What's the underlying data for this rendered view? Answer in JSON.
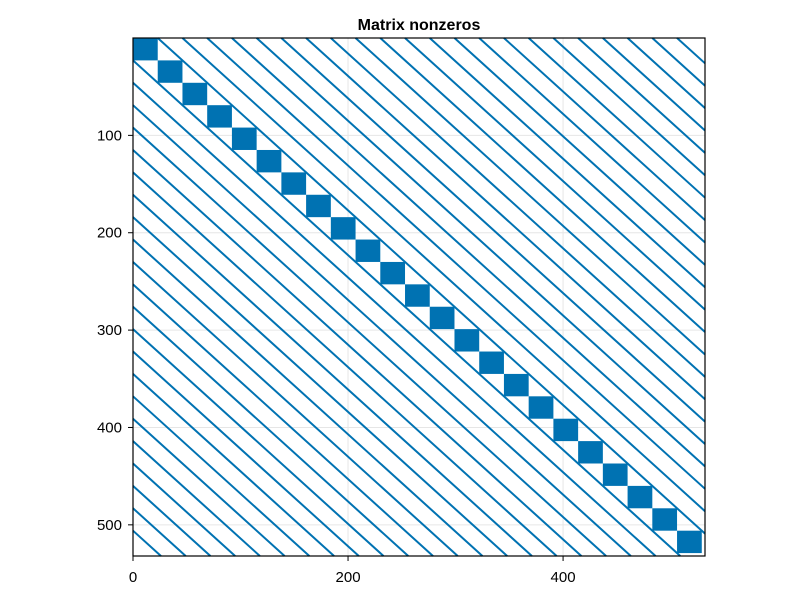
{
  "chart_data": {
    "type": "heatmap",
    "title": "Matrix nonzeros",
    "xlabel": "",
    "ylabel": "",
    "size": 532,
    "xlim": [
      0,
      532
    ],
    "ylim": [
      0,
      532
    ],
    "y_inverted": true,
    "xticks": [
      0,
      200,
      400
    ],
    "yticks": [
      100,
      200,
      300,
      400,
      500
    ],
    "grid": true,
    "legend": "none",
    "block_size": 23,
    "block_starts": [
      0,
      23,
      46,
      69,
      92,
      115,
      138,
      161,
      184,
      207,
      230,
      253,
      276,
      299,
      322,
      345,
      368,
      391,
      414,
      437,
      460,
      483,
      506
    ],
    "diagonal_offsets": [
      -506,
      -483,
      -460,
      -437,
      -414,
      -391,
      -368,
      -345,
      -322,
      -299,
      -276,
      -253,
      -230,
      -207,
      -184,
      -161,
      -138,
      -115,
      -92,
      -69,
      -46,
      -23,
      23,
      46,
      69,
      92,
      115,
      138,
      161,
      184,
      207,
      230,
      253,
      276,
      299,
      322,
      345,
      368,
      391,
      414,
      437,
      460,
      483,
      506
    ],
    "color": "#0072b2"
  }
}
